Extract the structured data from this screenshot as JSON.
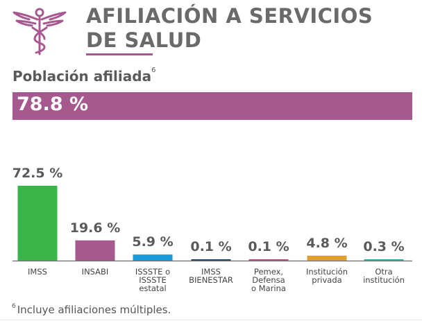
{
  "header": {
    "title_line1": "AFILIACIÓN A SERVICIOS",
    "title_line2": "DE SALUD",
    "subtitle": "Población afiliada",
    "subtitle_sup": "6",
    "total_percent": "78.8 %"
  },
  "colors": {
    "accent": "#a5598f",
    "title_text": "#6a6a6a"
  },
  "chart_data": {
    "type": "bar",
    "categories": [
      [
        "IMSS"
      ],
      [
        "INSABI"
      ],
      [
        "ISSSTE o",
        "ISSSTE",
        "estatal"
      ],
      [
        "IMSS",
        "BIENESTAR"
      ],
      [
        "Pemex,",
        "Defensa",
        "o Marina"
      ],
      [
        "Institución",
        "privada"
      ],
      [
        "Otra",
        "institución"
      ]
    ],
    "values": [
      72.5,
      19.6,
      5.9,
      0.1,
      0.1,
      4.8,
      0.3
    ],
    "value_labels": [
      "72.5 %",
      "19.6 %",
      "5.9 %",
      "0.1 %",
      "0.1 %",
      "4.8 %",
      "0.3 %"
    ],
    "colors": [
      "#3ab54a",
      "#a5598f",
      "#1a9ad6",
      "#2a4a72",
      "#c44a8a",
      "#e0a030",
      "#34b0a8"
    ],
    "ylim": [
      0,
      72.5
    ]
  },
  "footnote": {
    "mark": "6",
    "text": "Incluye afiliaciones múltiples."
  }
}
